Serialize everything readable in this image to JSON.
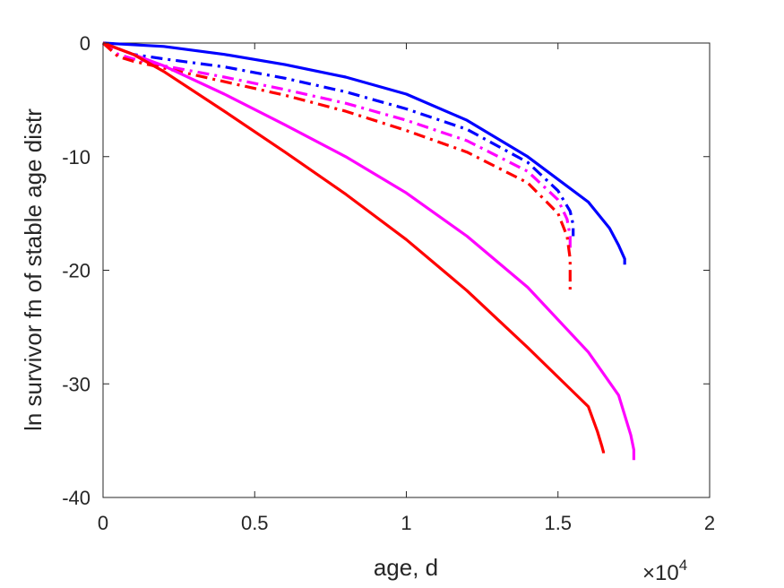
{
  "chart_data": {
    "type": "line",
    "title": "",
    "xlabel": "age, d",
    "ylabel": "ln survivor fn of stable age distr",
    "x_exponent_label": {
      "base": "×10",
      "exp": "4"
    },
    "xlim": [
      0,
      20000
    ],
    "ylim": [
      -40,
      0
    ],
    "xticks": [
      0,
      5000,
      10000,
      15000,
      20000
    ],
    "xtick_labels": [
      "0",
      "0.5",
      "1",
      "1.5",
      "2"
    ],
    "yticks": [
      -40,
      -30,
      -20,
      -10,
      0
    ],
    "ytick_labels": [
      "-40",
      "-30",
      "-20",
      "-10",
      "0"
    ],
    "grid": false,
    "series": [
      {
        "color": "#0000ff",
        "style": "solid",
        "x": [
          0,
          2000,
          4000,
          6000,
          8000,
          10000,
          12000,
          14000,
          16000,
          16700,
          17000,
          17200,
          17200
        ],
        "y": [
          0,
          -0.3,
          -1.0,
          -1.9,
          -3.0,
          -4.5,
          -6.8,
          -10.0,
          -14.0,
          -16.3,
          -17.8,
          -19.0,
          -19.5
        ]
      },
      {
        "color": "#0000ff",
        "style": "dashdot",
        "x": [
          0,
          1000,
          2000,
          4000,
          6000,
          8000,
          10000,
          12000,
          14000,
          15000,
          15400,
          15500,
          15500
        ],
        "y": [
          0,
          -1.0,
          -1.4,
          -2.1,
          -3.1,
          -4.3,
          -5.8,
          -7.6,
          -10.5,
          -13.0,
          -14.8,
          -16.0,
          -17.0
        ]
      },
      {
        "color": "#ff00ff",
        "style": "dashdot",
        "x": [
          0,
          500,
          1000,
          2000,
          4000,
          6000,
          8000,
          10000,
          12000,
          14000,
          15000,
          15300,
          15400,
          15400
        ],
        "y": [
          0,
          -1.0,
          -1.4,
          -2.0,
          -3.0,
          -4.1,
          -5.3,
          -6.8,
          -8.6,
          -11.3,
          -13.8,
          -15.5,
          -17.0,
          -18.5
        ]
      },
      {
        "color": "#ff0000",
        "style": "dashdot",
        "x": [
          0,
          500,
          1000,
          2000,
          4000,
          6000,
          8000,
          10000,
          12000,
          14000,
          15000,
          15300,
          15400,
          15400
        ],
        "y": [
          0,
          -1.2,
          -1.6,
          -2.2,
          -3.4,
          -4.6,
          -6.0,
          -7.7,
          -9.6,
          -12.3,
          -15.0,
          -17.0,
          -19.0,
          -21.7
        ]
      },
      {
        "color": "#ff00ff",
        "style": "solid",
        "x": [
          0,
          1000,
          2000,
          4000,
          6000,
          8000,
          10000,
          12000,
          14000,
          16000,
          17000,
          17400,
          17500,
          17500
        ],
        "y": [
          0,
          -1.0,
          -2.0,
          -4.5,
          -7.2,
          -10.0,
          -13.2,
          -17.0,
          -21.5,
          -27.2,
          -31.0,
          -34.5,
          -35.8,
          -36.7
        ]
      },
      {
        "color": "#ff0000",
        "style": "solid",
        "x": [
          0,
          1000,
          2000,
          4000,
          6000,
          8000,
          10000,
          12000,
          14000,
          16000,
          16300,
          16450,
          16500,
          16500
        ],
        "y": [
          0,
          -1.0,
          -2.5,
          -6.0,
          -9.6,
          -13.3,
          -17.3,
          -21.8,
          -26.8,
          -32.0,
          -34.2,
          -35.5,
          -36.0,
          -36.1
        ]
      }
    ]
  }
}
